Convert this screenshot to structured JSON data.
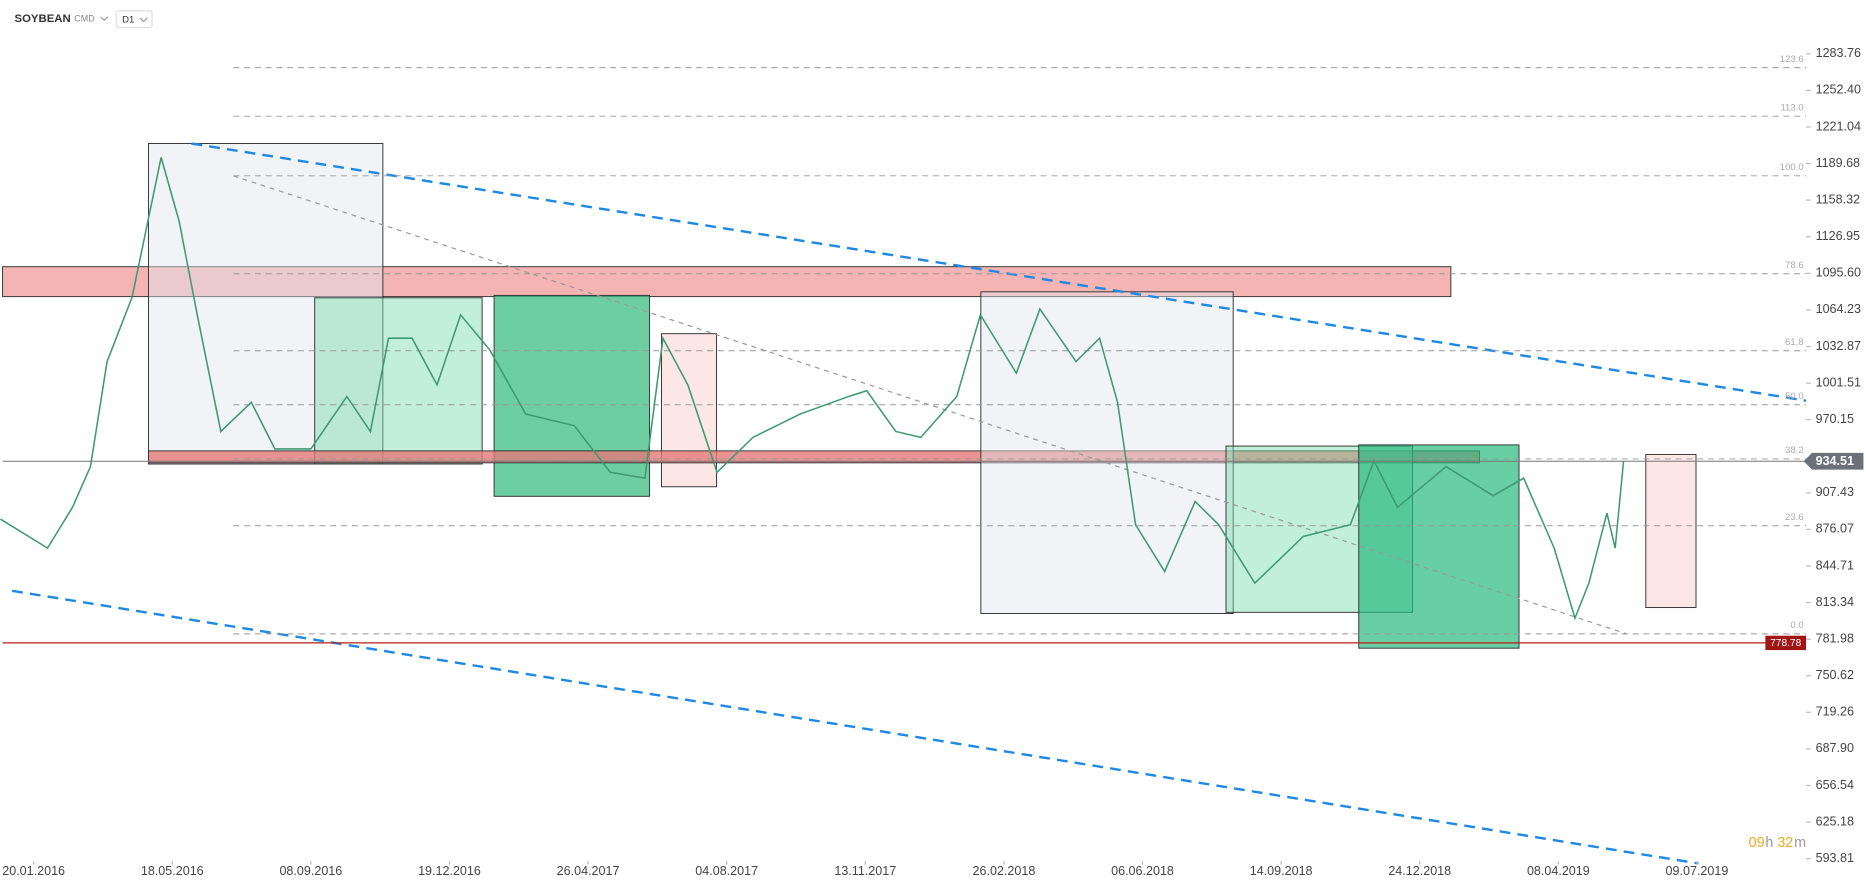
{
  "header": {
    "symbol": "SOYBEAN",
    "market": "CMD",
    "interval": "D1"
  },
  "timer": [
    "09",
    "h",
    "32",
    "m"
  ],
  "chart_data": {
    "type": "line",
    "color": "#3f9a72",
    "x": [
      -0.24,
      0.1,
      0.28,
      0.41,
      0.53,
      0.71,
      0.92,
      1.05,
      1.18,
      1.35,
      1.57,
      1.74,
      2.0,
      2.26,
      2.43,
      2.56,
      2.73,
      2.91,
      3.08,
      3.29,
      3.55,
      3.9,
      4.16,
      4.41,
      4.54,
      4.72,
      4.93,
      5.19,
      5.53,
      5.88,
      6.01,
      6.22,
      6.4,
      6.66,
      6.83,
      7.09,
      7.26,
      7.52,
      7.69,
      7.82,
      7.95,
      8.16,
      8.38,
      8.55,
      8.81,
      9.16,
      9.5,
      9.67,
      9.84,
      10.19,
      10.53,
      10.75,
      10.97,
      11.12,
      11.22,
      11.35,
      11.41,
      11.47
    ],
    "values": [
      885,
      860,
      895,
      930,
      1020,
      1075,
      1195,
      1140,
      1060,
      960,
      985,
      945,
      945,
      990,
      960,
      1040,
      1040,
      1000,
      1060,
      1030,
      975,
      965,
      925,
      920,
      1040,
      1000,
      925,
      955,
      975,
      990,
      995,
      960,
      955,
      990,
      1060,
      1010,
      1065,
      1020,
      1040,
      985,
      880,
      840,
      900,
      880,
      830,
      870,
      880,
      935,
      895,
      930,
      905,
      920,
      860,
      800,
      830,
      890,
      860,
      934.51
    ],
    "xlim": [
      -0.2416,
      12.787
    ],
    "xticks": [
      {
        "value": 0,
        "label": "20.01.2016"
      },
      {
        "value": 1,
        "label": "18.05.2016"
      },
      {
        "value": 2,
        "label": "08.09.2016"
      },
      {
        "value": 3,
        "label": "19.12.2016"
      },
      {
        "value": 4,
        "label": "26.04.2017"
      },
      {
        "value": 5,
        "label": "04.08.2017"
      },
      {
        "value": 6,
        "label": "13.11.2017"
      },
      {
        "value": 7,
        "label": "26.02.2018"
      },
      {
        "value": 8,
        "label": "06.06.2018"
      },
      {
        "value": 9,
        "label": "14.09.2018"
      },
      {
        "value": 10,
        "label": "24.12.2018"
      },
      {
        "value": 11,
        "label": "08.04.2019"
      },
      {
        "value": 12,
        "label": "09.07.2019"
      }
    ],
    "ylim": [
      593.81,
      1283.76
    ],
    "yticks": [
      1283.76,
      {
        "value": 1252.4,
        "label": "1252.40"
      },
      1221.04,
      1189.68,
      1158.32,
      1126.95,
      {
        "value": 1095.6,
        "label": "1095.60"
      },
      1064.23,
      1032.87,
      1001.51,
      970.15,
      907.43,
      876.07,
      844.71,
      813.34,
      781.98,
      750.62,
      719.26,
      {
        "value": 687.9,
        "label": "687.90"
      },
      656.54,
      625.18,
      593.81
    ],
    "last_price": 934.51,
    "support_level": 778.78,
    "fibonacci": {
      "labels": [
        "123.6",
        "113.0",
        "100.0",
        "78.6",
        "61.8",
        "50.0",
        "38.2",
        "23.6",
        "0.0"
      ],
      "prices": [
        1271.9,
        1230.3,
        1179.2,
        1095.2,
        1029.2,
        982.9,
        936.5,
        879.2,
        786.5
      ]
    }
  }
}
